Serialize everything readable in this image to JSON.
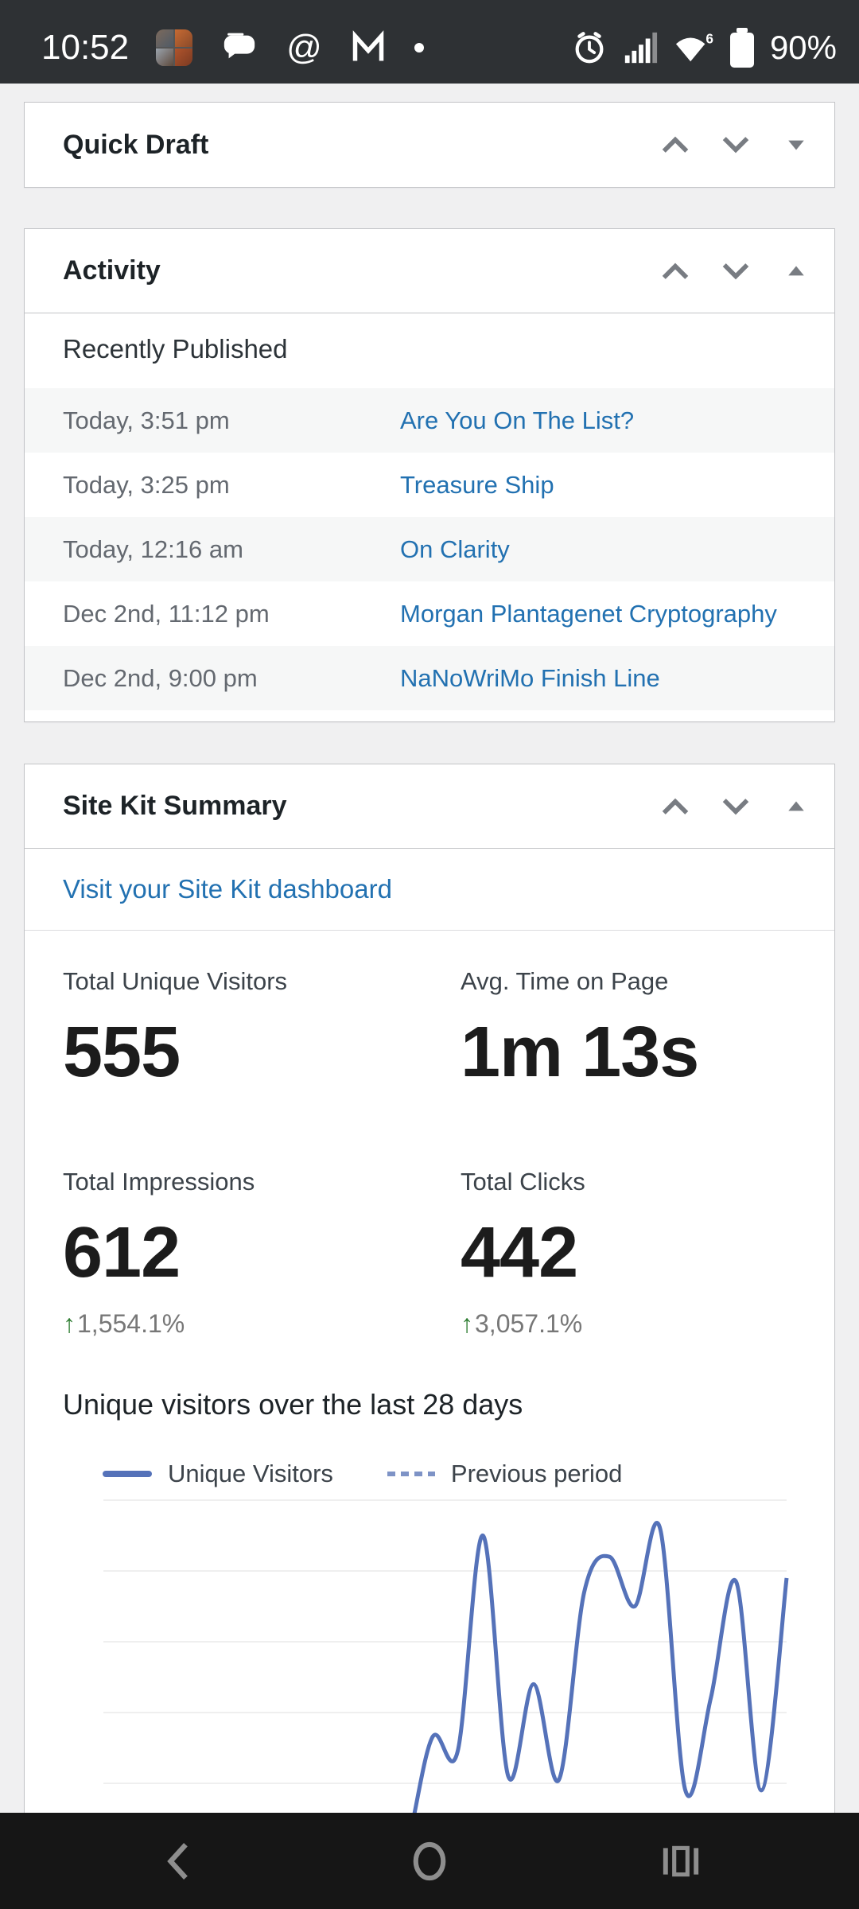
{
  "status_bar": {
    "time": "10:52",
    "notification_icons": [
      "notification-avatar-collage-icon",
      "messages-icon",
      "threads-icon",
      "gmail-icon",
      "more-notifications-dot"
    ],
    "system_icons": [
      "alarm-icon",
      "cell-signal-icon",
      "wifi-icon",
      "battery-icon"
    ],
    "wifi_generation": "6",
    "battery_label": "90%"
  },
  "glyphs": {
    "threads": "@",
    "up_arrow": "↑"
  },
  "panels": {
    "quick_draft": {
      "title": "Quick Draft",
      "collapsed": true
    },
    "activity": {
      "title": "Activity",
      "section_heading": "Recently Published",
      "items": [
        {
          "date": "Today, 3:51 pm",
          "title": "Are You On The List?"
        },
        {
          "date": "Today, 3:25 pm",
          "title": "Treasure Ship"
        },
        {
          "date": "Today, 12:16 am",
          "title": "On Clarity"
        },
        {
          "date": "Dec 2nd, 11:12 pm",
          "title": "Morgan Plantagenet Cryptography"
        },
        {
          "date": "Dec 2nd, 9:00 pm",
          "title": "NaNoWriMo Finish Line"
        }
      ]
    },
    "site_kit": {
      "title": "Site Kit Summary",
      "dashboard_link": "Visit your Site Kit dashboard",
      "stats": [
        {
          "label": "Total Unique Visitors",
          "value": "555"
        },
        {
          "label": "Avg. Time on Page",
          "value": "1m 13s"
        },
        {
          "label": "Total Impressions",
          "value": "612",
          "change": "1,554.1%",
          "change_direction": "up"
        },
        {
          "label": "Total Clicks",
          "value": "442",
          "change": "3,057.1%",
          "change_direction": "up"
        }
      ],
      "chart_heading": "Unique visitors over the last 28 days"
    }
  },
  "nav_bar": {
    "items": [
      "back",
      "home",
      "recents"
    ]
  },
  "colors": {
    "page_bg": "#f0f0f1",
    "panel_bg": "#ffffff",
    "panel_border": "#c3c4c7",
    "status_bar_bg": "#2e3134",
    "nav_bar_bg": "#161616",
    "nav_icon": "#8e8e8e",
    "link": "#2271b1",
    "heading_text": "#1d2327",
    "muted_text": "#646970",
    "row_stripe": "#f6f7f7",
    "divider": "#dcdcde",
    "header_icon": "#787c82",
    "chart_line": "#5572b9",
    "chart_line_dashed": "#7e93c6",
    "chart_grid": "#efefef",
    "positive": "#2e7d32",
    "change_text": "#777777"
  },
  "chart_data": {
    "type": "line",
    "title": "Unique visitors over the last 28 days",
    "x": [
      1,
      2,
      3,
      4,
      5,
      6,
      7,
      8,
      9,
      10,
      11,
      12,
      13,
      14,
      15,
      16,
      17,
      18,
      19,
      20,
      21,
      22,
      23,
      24,
      25,
      26,
      27,
      28
    ],
    "series": [
      {
        "name": "Unique Visitors",
        "line_style": "solid",
        "values": [
          0,
          0,
          0,
          0,
          0,
          0,
          0,
          0,
          0,
          0,
          0,
          0,
          22,
          53,
          49,
          110,
          42,
          68,
          41,
          94,
          104,
          90,
          112,
          38,
          64,
          97,
          38,
          98
        ]
      },
      {
        "name": "Previous period",
        "line_style": "dashed",
        "values": [
          0,
          0,
          0,
          0,
          0,
          0,
          0,
          0,
          0,
          0,
          0,
          0,
          0,
          0,
          0,
          0,
          0,
          0,
          0,
          0,
          0,
          0,
          0,
          0,
          0,
          0,
          0,
          0
        ]
      }
    ],
    "ylim": [
      0,
      120
    ],
    "y_gridline_step": 20,
    "grid": true,
    "legend_position": "top-left",
    "x_axis_visible": false
  }
}
